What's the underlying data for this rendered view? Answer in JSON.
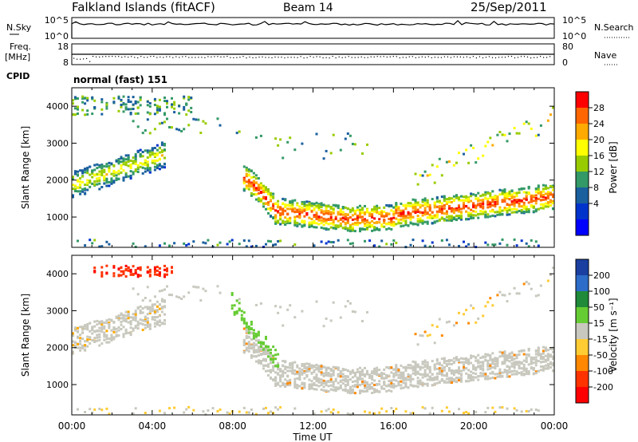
{
  "header": {
    "station": "Falkland Islands (fitACF)",
    "beam": "Beam 14",
    "date": "25/Sep/2011"
  },
  "params": {
    "nsky_label": "N.Sky",
    "nsky_ticks": [
      "10^5",
      "10^0"
    ],
    "nsearch_label": "N.Search",
    "nsearch_ticks": [
      "10^5",
      "10^0"
    ],
    "freq_label_1": "Freq.",
    "freq_label_2": "[MHz]",
    "freq_ticks": [
      "18",
      "8"
    ],
    "nave_label": "Nave",
    "nave_ticks": [
      "80",
      "0"
    ],
    "cpid_label": "CPID",
    "cpid_value": "normal (fast) 151"
  },
  "power_panel": {
    "ylabel": "Slant Range [km]",
    "yticks": [
      "4000",
      "3000",
      "2000",
      "1000"
    ],
    "colorbar_label": "Power [dB]",
    "colorbar_ticks": [
      "28",
      "24",
      "20",
      "16",
      "12",
      "8",
      "4"
    ],
    "colorbar_colors": [
      "#ff0000",
      "#ff6600",
      "#ffaa00",
      "#ffff00",
      "#99cc00",
      "#339966",
      "#1a5f9e",
      "#0033cc",
      "#0000ff"
    ]
  },
  "velocity_panel": {
    "ylabel": "Slant Range [km]",
    "yticks": [
      "4000",
      "3000",
      "2000",
      "1000"
    ],
    "colorbar_label": "Velocity [m s⁻¹]",
    "colorbar_ticks": [
      "200",
      "100",
      "50",
      "15",
      "-15",
      "-50",
      "-100",
      "-200"
    ],
    "colorbar_colors": [
      "#1a3fa0",
      "#2d6cc8",
      "#1f8a3a",
      "#66cc33",
      "#c8c8be",
      "#ffcc33",
      "#ff8800",
      "#ff3300",
      "#ff0000"
    ]
  },
  "xaxis": {
    "ticks": [
      "00:00",
      "04:00",
      "08:00",
      "12:00",
      "16:00",
      "20:00",
      "00:00"
    ],
    "label": "Time UT"
  },
  "chart_data": [
    {
      "type": "heatmap",
      "title": "Power",
      "xlabel": "Time UT",
      "ylabel": "Slant Range [km]",
      "xlim_hours": [
        0,
        24
      ],
      "ylim_km": [
        180,
        4500
      ],
      "colorbar": {
        "label": "Power [dB]",
        "range": [
          0,
          30
        ],
        "ticks": [
          4,
          8,
          12,
          16,
          20,
          24,
          28
        ]
      },
      "features": [
        {
          "name": "backscatter-band-main",
          "hours": [
            9,
            24
          ],
          "range_km": [
            900,
            1800
          ],
          "power_db_approx": [
            10,
            28
          ]
        },
        {
          "name": "backscatter-band-upper",
          "hours": [
            0,
            4.5
          ],
          "range_km": [
            1900,
            2800
          ],
          "power_db_approx": [
            6,
            20
          ]
        },
        {
          "name": "far-range-scatter",
          "hours": [
            0,
            6
          ],
          "range_km": [
            3500,
            4400
          ],
          "power_db_approx": [
            4,
            16
          ]
        }
      ]
    },
    {
      "type": "heatmap",
      "title": "Velocity",
      "xlabel": "Time UT",
      "ylabel": "Slant Range [km]",
      "xlim_hours": [
        0,
        24
      ],
      "ylim_km": [
        180,
        4500
      ],
      "colorbar": {
        "label": "Velocity [m s⁻¹]",
        "range": [
          -250,
          250
        ],
        "ticks": [
          200,
          100,
          50,
          15,
          -15,
          -50,
          -100,
          -200
        ]
      },
      "features": [
        {
          "name": "ground-scatter-band",
          "hours": [
            9,
            24
          ],
          "range_km": [
            900,
            1900
          ],
          "velocity_approx": 0
        },
        {
          "name": "positive-velocity-streak",
          "hours": [
            8,
            10
          ],
          "range_km": [
            1500,
            3200
          ],
          "velocity_approx": 40
        },
        {
          "name": "negative-velocity-patch",
          "hours": [
            1,
            5
          ],
          "range_km": [
            3900,
            4300
          ],
          "velocity_approx": -200
        }
      ]
    }
  ]
}
